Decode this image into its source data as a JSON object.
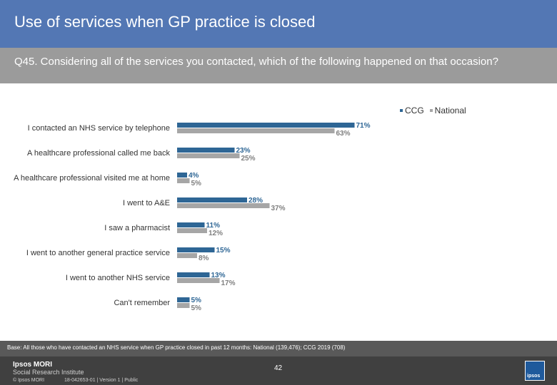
{
  "header": {
    "title": "Use of services when GP practice is closed",
    "question": "Q45. Considering all of the services you contacted, which of the following happened on that occasion?"
  },
  "legend": {
    "ccg": "CCG",
    "national": "National"
  },
  "colors": {
    "ccg": "#2e6695",
    "national": "#a6a6a6",
    "header": "#5377b4",
    "question": "#9b9b9b"
  },
  "chart_data": {
    "type": "bar",
    "orientation": "horizontal",
    "categories": [
      "I contacted an NHS service by telephone",
      "A healthcare professional called me back",
      "A healthcare professional visited me at home",
      "I went to A&E",
      "I saw a pharmacist",
      "I went to another general practice service",
      "I went to another NHS service",
      "Can't remember"
    ],
    "series": [
      {
        "name": "CCG",
        "values": [
          71,
          23,
          4,
          28,
          11,
          15,
          13,
          5
        ]
      },
      {
        "name": "National",
        "values": [
          63,
          25,
          5,
          37,
          12,
          8,
          17,
          5
        ]
      }
    ],
    "value_suffix": "%",
    "xlim": [
      0,
      100
    ],
    "legend_position": "top-right",
    "grid": false
  },
  "footer": {
    "base_note": "Base: All those who have contacted an NHS service when GP practice closed in past 12 months: National (139,476); CCG 2019 (708)",
    "logo_line1": "Ipsos MORI",
    "logo_line2": "Social Research Institute",
    "copyright": "© Ipsos MORI",
    "job_number": "18-042653-01 | Version 1 | Public",
    "page_number": "42",
    "logo_text": "ipsos"
  }
}
